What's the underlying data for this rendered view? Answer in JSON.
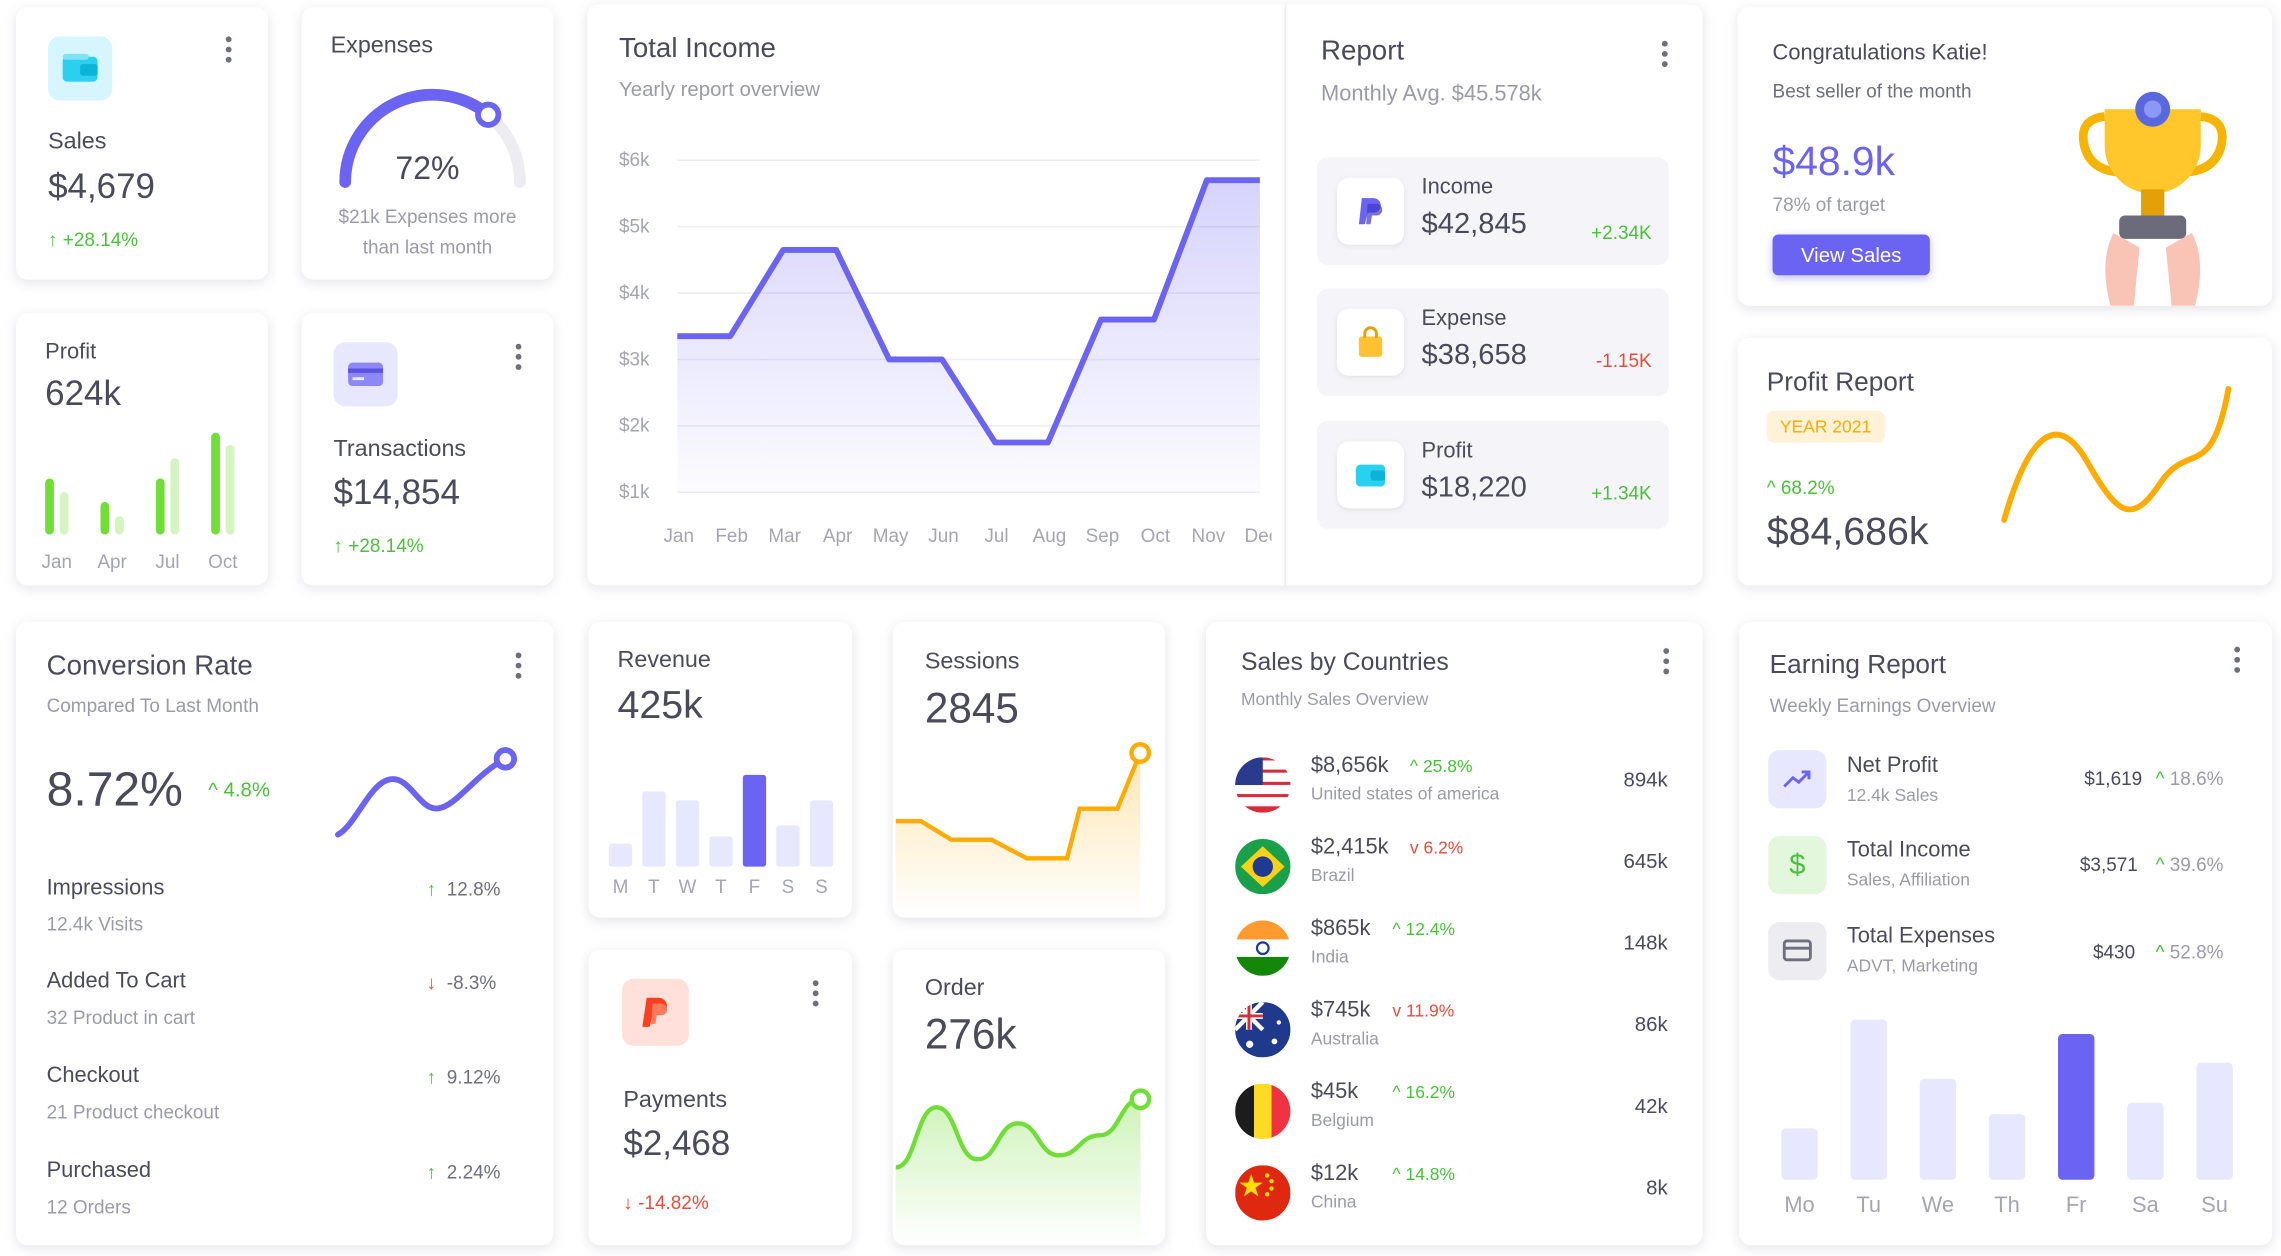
{
  "colors": {
    "primary": "#6b63f2",
    "success": "#49c13a",
    "danger": "#ec4b3a",
    "warning": "#ffab00",
    "info": "#03c3ec"
  },
  "sales": {
    "label": "Sales",
    "value": "$4,679",
    "change": "+28.14%",
    "icon": "wallet-icon"
  },
  "expenses": {
    "label": "Expenses",
    "percent": "72%",
    "gauge_fraction": 0.72,
    "note_line1": "$21k Expenses more",
    "note_line2": "than last month"
  },
  "total_income": {
    "title": "Total Income",
    "subtitle": "Yearly report overview",
    "chart_data": {
      "type": "area",
      "x": [
        "Jan",
        "Feb",
        "Mar",
        "Apr",
        "May",
        "Jun",
        "Jul",
        "Aug",
        "Sep",
        "Oct",
        "Nov",
        "Dec"
      ],
      "y_ticks": [
        "$6k",
        "$5k",
        "$4k",
        "$3k",
        "$2k",
        "$1k"
      ],
      "ylim": [
        1,
        6
      ],
      "values": [
        3.35,
        3.35,
        4.65,
        4.65,
        3.0,
        3.0,
        1.75,
        1.75,
        3.6,
        3.6,
        5.7,
        5.7
      ],
      "color": "#6b63f2",
      "grid": true
    }
  },
  "report": {
    "title": "Report",
    "subtitle": "Monthly Avg. $45.578k",
    "items": [
      {
        "label": "Income",
        "value": "$42,845",
        "change": "+2.34K",
        "trend": "up",
        "icon": "paypal-icon"
      },
      {
        "label": "Expense",
        "value": "$38,658",
        "change": "-1.15K",
        "trend": "down",
        "icon": "shopping-bag-icon"
      },
      {
        "label": "Profit",
        "value": "$18,220",
        "change": "+1.34K",
        "trend": "up",
        "icon": "wallet-icon"
      }
    ]
  },
  "congrats": {
    "title": "Congratulations Katie!",
    "subtitle": "Best seller of the month",
    "value": "$48.9k",
    "target": "78% of target",
    "button": "View Sales",
    "illustration": "trophy-icon"
  },
  "profit": {
    "label": "Profit",
    "value": "624k",
    "chart_data": {
      "type": "bar",
      "categories": [
        "Jan",
        "Apr",
        "Jul",
        "Oct"
      ],
      "series": [
        {
          "values": [
            0.55,
            0.32,
            0.55,
            1.0
          ]
        },
        {
          "values": [
            0.42,
            0.18,
            0.75,
            0.88
          ]
        }
      ]
    }
  },
  "transactions": {
    "label": "Transactions",
    "value": "$14,854",
    "change": "+28.14%",
    "icon": "credit-card-icon"
  },
  "profit_report": {
    "title": "Profit Report",
    "badge": "YEAR 2021",
    "change": "68.2%",
    "value": "$84,686k"
  },
  "conversion": {
    "title": "Conversion Rate",
    "subtitle": "Compared To Last Month",
    "value": "8.72%",
    "change": "4.8%",
    "items": [
      {
        "label": "Impressions",
        "sub": "12.4k Visits",
        "change": "12.8%",
        "trend": "up"
      },
      {
        "label": "Added To Cart",
        "sub": "32 Product in cart",
        "change": "-8.3%",
        "trend": "down"
      },
      {
        "label": "Checkout",
        "sub": "21 Product checkout",
        "change": "9.12%",
        "trend": "up"
      },
      {
        "label": "Purchased",
        "sub": "12 Orders",
        "change": "2.24%",
        "trend": "up"
      }
    ]
  },
  "revenue": {
    "label": "Revenue",
    "value": "425k",
    "chart_data": {
      "type": "bar",
      "categories": [
        "M",
        "T",
        "W",
        "T",
        "F",
        "S",
        "S"
      ],
      "values": [
        0.25,
        0.82,
        0.72,
        0.33,
        1.0,
        0.45,
        0.72
      ],
      "highlight": 4
    }
  },
  "sessions": {
    "label": "Sessions",
    "value": "2845",
    "chart_data": {
      "type": "line",
      "values": [
        0.45,
        0.45,
        0.3,
        0.3,
        0.15,
        0.15,
        0.55,
        0.55,
        1.0
      ]
    }
  },
  "payments": {
    "label": "Payments",
    "value": "$2,468",
    "change": "-14.82%",
    "icon": "paypal-icon"
  },
  "order": {
    "label": "Order",
    "value": "276k",
    "chart_data": {
      "type": "area",
      "values": [
        0.1,
        0.85,
        0.2,
        0.65,
        0.25,
        0.5,
        0.95
      ]
    }
  },
  "countries": {
    "title": "Sales by Countries",
    "subtitle": "Monthly Sales Overview",
    "items": [
      {
        "amount": "$8,656k",
        "change": "25.8%",
        "trend": "up",
        "country": "United states of america",
        "total": "894k",
        "flag": "us-flag-icon"
      },
      {
        "amount": "$2,415k",
        "change": "6.2%",
        "trend": "down",
        "country": "Brazil",
        "total": "645k",
        "flag": "brazil-flag-icon"
      },
      {
        "amount": "$865k",
        "change": "12.4%",
        "trend": "up",
        "country": "India",
        "total": "148k",
        "flag": "india-flag-icon"
      },
      {
        "amount": "$745k",
        "change": "11.9%",
        "trend": "down",
        "country": "Australia",
        "total": "86k",
        "flag": "australia-flag-icon"
      },
      {
        "amount": "$45k",
        "change": "16.2%",
        "trend": "up",
        "country": "Belgium",
        "total": "42k",
        "flag": "belgium-flag-icon"
      },
      {
        "amount": "$12k",
        "change": "14.8%",
        "trend": "up",
        "country": "China",
        "total": "8k",
        "flag": "china-flag-icon"
      }
    ]
  },
  "earning": {
    "title": "Earning Report",
    "subtitle": "Weekly Earnings Overview",
    "items": [
      {
        "label": "Net Profit",
        "sub": "12.4k Sales",
        "value": "$1,619",
        "change": "18.6%",
        "icon": "trending-up-icon"
      },
      {
        "label": "Total Income",
        "sub": "Sales, Affiliation",
        "value": "$3,571",
        "change": "39.6%",
        "icon": "dollar-icon"
      },
      {
        "label": "Total Expenses",
        "sub": "ADVT, Marketing",
        "value": "$430",
        "change": "52.8%",
        "icon": "credit-card-icon"
      }
    ],
    "chart_data": {
      "type": "bar",
      "categories": [
        "Mo",
        "Tu",
        "We",
        "Th",
        "Fr",
        "Sa",
        "Su"
      ],
      "values": [
        0.32,
        1.0,
        0.63,
        0.41,
        0.91,
        0.48,
        0.73
      ],
      "highlight": 4
    }
  }
}
